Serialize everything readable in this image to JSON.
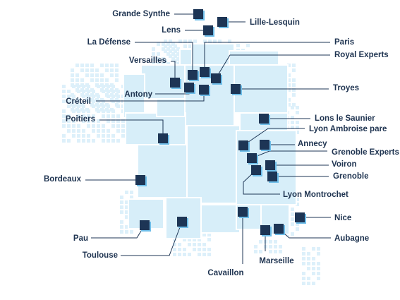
{
  "colors": {
    "region_fill": "#d7eef9",
    "region_stroke": "#ffffff",
    "pixel_fill": "#ddf0fa",
    "marker_fill": "#1d3555",
    "marker_shadow": "#6fbee9",
    "leader_line": "#1d3555",
    "label_text": "#1e3350"
  },
  "marker_icon": "square-office-marker",
  "locations": [
    {
      "id": "grande-synthe",
      "label": "Grande Synthe"
    },
    {
      "id": "lille-lesquin",
      "label": "Lille-Lesquin"
    },
    {
      "id": "lens",
      "label": "Lens"
    },
    {
      "id": "la-defense",
      "label": "La Défense"
    },
    {
      "id": "paris",
      "label": "Paris"
    },
    {
      "id": "royal-experts",
      "label": "Royal Experts"
    },
    {
      "id": "versailles",
      "label": "Versailles"
    },
    {
      "id": "antony",
      "label": "Antony"
    },
    {
      "id": "creteil",
      "label": "Créteil"
    },
    {
      "id": "troyes",
      "label": "Troyes"
    },
    {
      "id": "poitiers",
      "label": "Poitiers"
    },
    {
      "id": "lons-le-saunier",
      "label": "Lons le Saunier"
    },
    {
      "id": "lyon-ambroise-pare",
      "label": "Lyon Ambroise pare"
    },
    {
      "id": "annecy",
      "label": "Annecy"
    },
    {
      "id": "grenoble-experts",
      "label": "Grenoble Experts"
    },
    {
      "id": "voiron",
      "label": "Voiron"
    },
    {
      "id": "grenoble",
      "label": "Grenoble"
    },
    {
      "id": "lyon-montrochet",
      "label": "Lyon Montrochet"
    },
    {
      "id": "bordeaux",
      "label": "Bordeaux"
    },
    {
      "id": "nice",
      "label": "Nice"
    },
    {
      "id": "pau",
      "label": "Pau"
    },
    {
      "id": "aubagne",
      "label": "Aubagne"
    },
    {
      "id": "toulouse",
      "label": "Toulouse"
    },
    {
      "id": "marseille",
      "label": "Marseille"
    },
    {
      "id": "cavaillon",
      "label": "Cavaillon"
    }
  ]
}
